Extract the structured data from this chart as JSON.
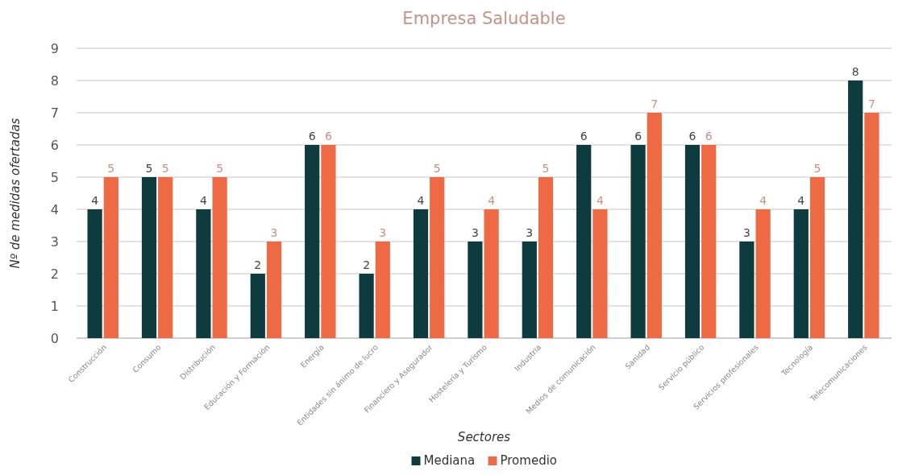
{
  "chart_data": {
    "type": "bar",
    "title": "Empresa Saludable",
    "xlabel": "Sectores",
    "ylabel": "Nº de medidas ofertadas",
    "categories": [
      "Construcción",
      "Consumo",
      "Distribución",
      "Educación y Formación",
      "Energía",
      "Entidades sin ánimo de lucro",
      "Financiero y Asegurador",
      "Hostelería y Turismo",
      "Industria",
      "Medios de comunicación",
      "Sanidad",
      "Servicio público",
      "Servicios profesionales",
      "Tecnología",
      "Telecomunicaciones"
    ],
    "series": [
      {
        "name": "Mediana",
        "color": "#0d3b3e",
        "values": [
          4,
          5,
          4,
          2,
          6,
          2,
          4,
          3,
          3,
          6,
          6,
          6,
          3,
          4,
          8
        ]
      },
      {
        "name": "Promedio",
        "color": "#ee6a45",
        "values": [
          5,
          5,
          5,
          3,
          6,
          3,
          5,
          4,
          5,
          4,
          7,
          6,
          4,
          5,
          7
        ]
      }
    ],
    "ylim": [
      0,
      9
    ],
    "yticks": [
      0,
      1,
      2,
      3,
      4,
      5,
      6,
      7,
      8,
      9
    ],
    "grid": "y",
    "legend": "bottom",
    "data_labels": true
  }
}
